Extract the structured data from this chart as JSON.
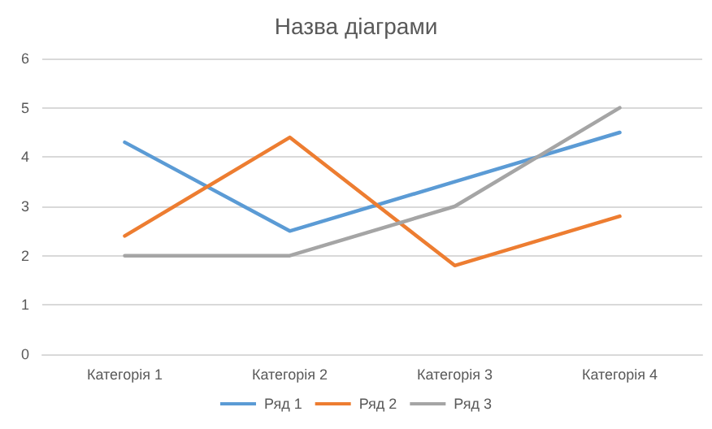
{
  "chart_data": {
    "type": "line",
    "title": "Назва діаграми",
    "categories": [
      "Категорія 1",
      "Категорія 2",
      "Категорія 3",
      "Категорія 4"
    ],
    "series": [
      {
        "name": "Ряд 1",
        "color": "#5b9bd5",
        "values": [
          4.3,
          2.5,
          3.5,
          4.5
        ]
      },
      {
        "name": "Ряд 2",
        "color": "#ed7d31",
        "values": [
          2.4,
          4.4,
          1.8,
          2.8
        ]
      },
      {
        "name": "Ряд 3",
        "color": "#a5a5a5",
        "values": [
          2,
          2,
          3,
          5
        ]
      }
    ],
    "ylim": [
      0,
      6
    ],
    "yticks": [
      0,
      1,
      2,
      3,
      4,
      5,
      6
    ],
    "grid": "y",
    "legend": "bottom",
    "marker": "none",
    "line_style": "solid"
  }
}
